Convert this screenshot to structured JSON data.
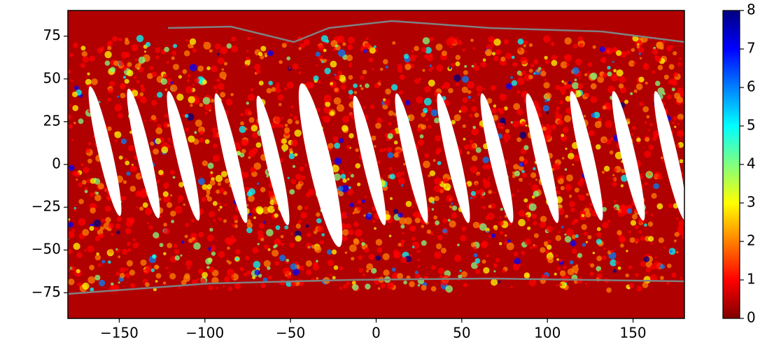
{
  "chart_data": {
    "type": "map",
    "xlim": [
      -180,
      180
    ],
    "ylim": [
      -90,
      90
    ],
    "xticks": [
      {
        "value": -150,
        "label": "−150"
      },
      {
        "value": -100,
        "label": "−100"
      },
      {
        "value": -50,
        "label": "−50"
      },
      0,
      50,
      100,
      150
    ],
    "yticks": [
      {
        "value": -75,
        "label": "−75"
      },
      {
        "value": -50,
        "label": "−50"
      },
      {
        "value": -25,
        "label": "−25"
      },
      0,
      25,
      50,
      75
    ],
    "colorbar": {
      "lim": [
        0,
        8
      ],
      "ticks": [
        0,
        1,
        2,
        3,
        4,
        5,
        6,
        7,
        8
      ],
      "colormap": "jet_r"
    }
  }
}
